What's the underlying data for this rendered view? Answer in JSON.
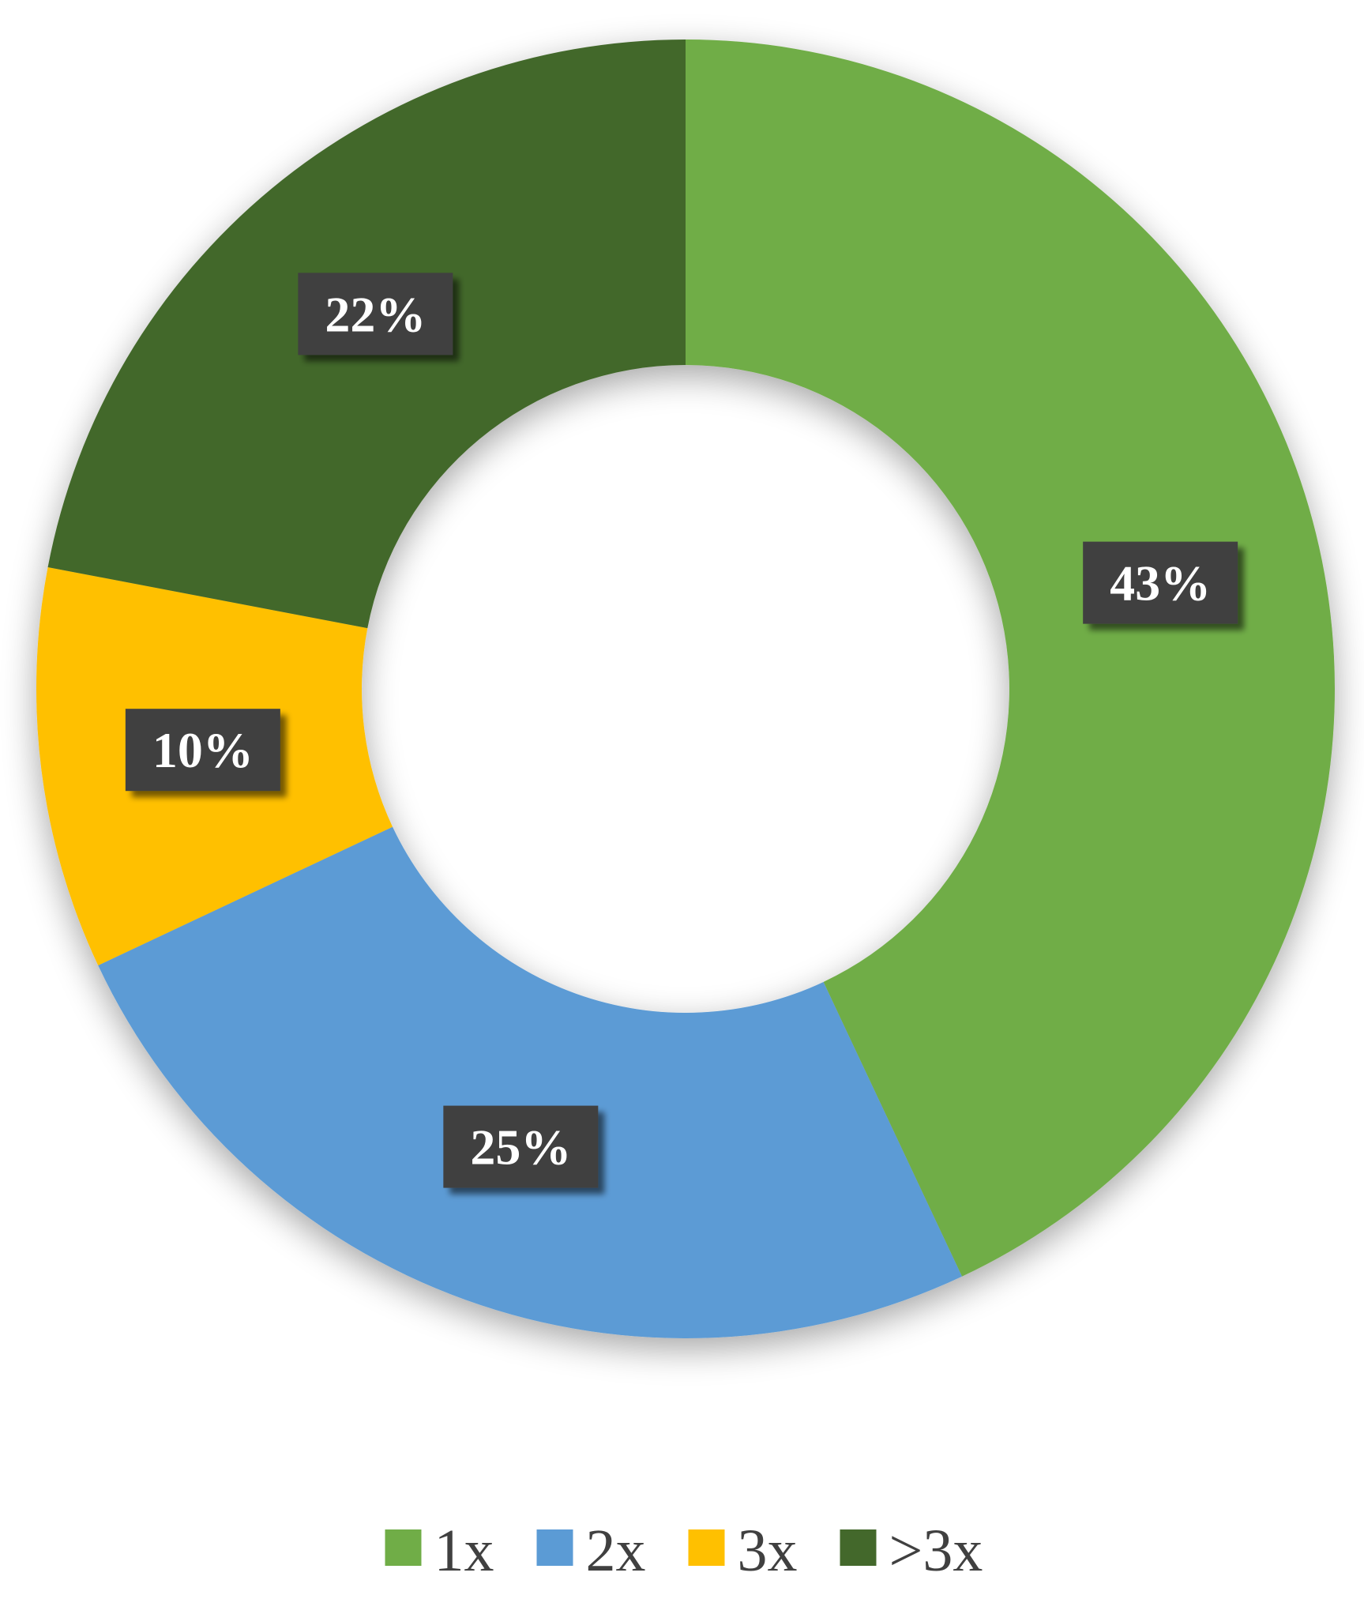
{
  "chart_data": {
    "type": "pie",
    "variant": "donut",
    "categories": [
      "1x",
      "2x",
      "3x",
      ">3x"
    ],
    "values": [
      43,
      25,
      10,
      22
    ],
    "data_labels": [
      "43%",
      "25%",
      "10%",
      "22%"
    ],
    "colors": [
      "#70AD47",
      "#5B9BD5",
      "#FFC000",
      "#43682B"
    ],
    "legend": {
      "position": "bottom",
      "entries": [
        "1x",
        "2x",
        "3x",
        ">3x"
      ]
    }
  }
}
